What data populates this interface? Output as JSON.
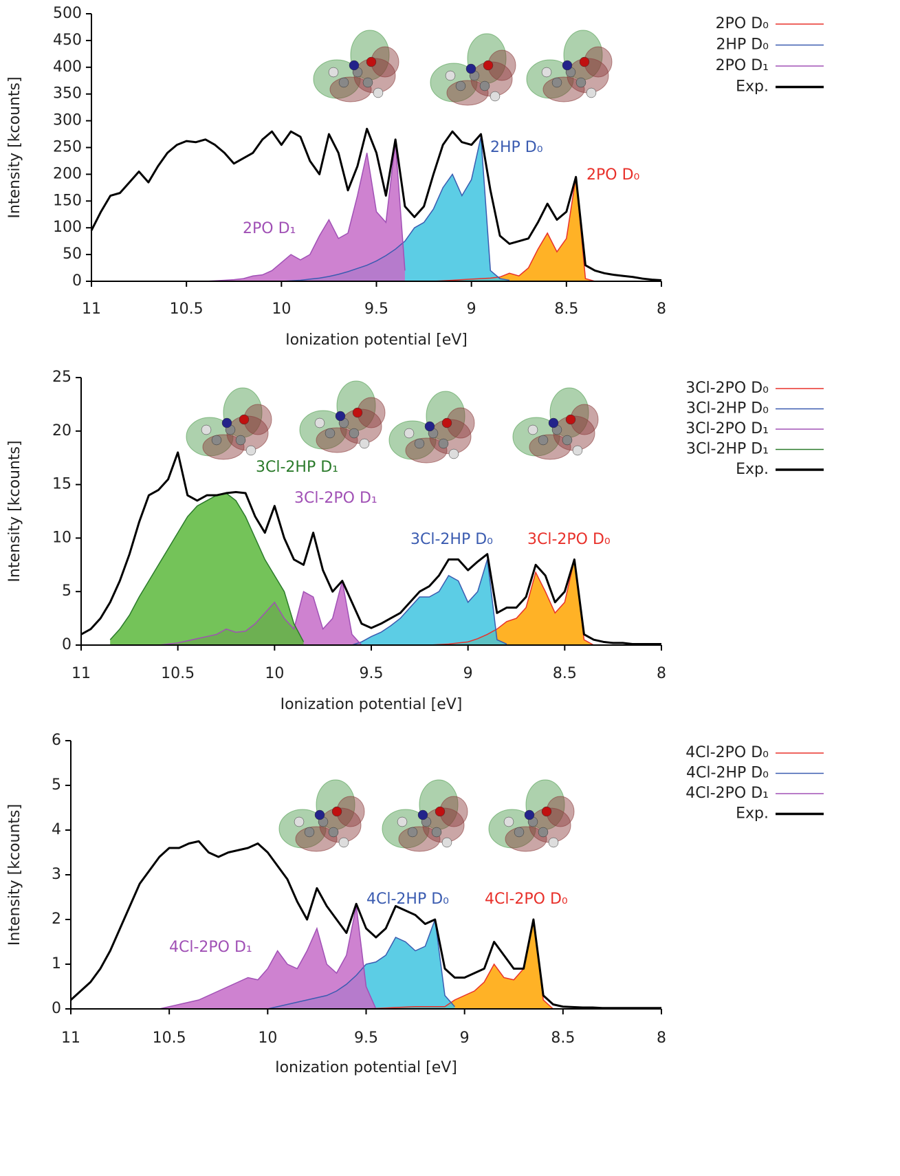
{
  "chart_data": [
    {
      "type": "line",
      "xlabel": "Ionization potential [eV]",
      "ylabel": "Intensity [kcounts]",
      "x": [
        11,
        10.95,
        10.9,
        10.85,
        10.8,
        10.75,
        10.7,
        10.65,
        10.6,
        10.55,
        10.5,
        10.45,
        10.4,
        10.35,
        10.3,
        10.25,
        10.2,
        10.15,
        10.1,
        10.05,
        10,
        9.95,
        9.9,
        9.85,
        9.8,
        9.75,
        9.7,
        9.65,
        9.6,
        9.55,
        9.5,
        9.45,
        9.4,
        9.35,
        9.3,
        9.25,
        9.2,
        9.15,
        9.1,
        9.05,
        9,
        8.95,
        8.9,
        8.85,
        8.8,
        8.75,
        8.7,
        8.65,
        8.6,
        8.55,
        8.5,
        8.45,
        8.4,
        8.35,
        8.3,
        8.25,
        8.2,
        8.15,
        8.1,
        8.05,
        8
      ],
      "xlim": [
        11,
        8
      ],
      "ylim": [
        0,
        500
      ],
      "xticks": [
        11,
        10.5,
        10,
        9.5,
        9,
        8.5,
        8
      ],
      "yticks": [
        0,
        50,
        100,
        150,
        200,
        250,
        300,
        350,
        400,
        450,
        500
      ],
      "series": [
        {
          "name": "2PO D₀",
          "color": "#e8302a",
          "fill": "#ffa500",
          "values": [
            null,
            null,
            null,
            null,
            null,
            null,
            null,
            null,
            null,
            null,
            null,
            null,
            null,
            null,
            null,
            null,
            null,
            null,
            null,
            null,
            null,
            null,
            null,
            null,
            null,
            null,
            null,
            null,
            null,
            null,
            null,
            null,
            null,
            null,
            null,
            null,
            0,
            1,
            2,
            3,
            4,
            5,
            6,
            8,
            15,
            10,
            25,
            60,
            90,
            55,
            80,
            195,
            5,
            0,
            null,
            null,
            null,
            null,
            null,
            null,
            null
          ]
        },
        {
          "name": "2HP D₀",
          "color": "#3a5bb0",
          "fill": "#40c4e0",
          "values": [
            null,
            null,
            null,
            null,
            null,
            null,
            null,
            null,
            null,
            null,
            null,
            null,
            null,
            null,
            null,
            null,
            null,
            null,
            null,
            null,
            0,
            1,
            2,
            4,
            6,
            9,
            13,
            18,
            24,
            30,
            38,
            48,
            60,
            75,
            100,
            110,
            135,
            175,
            200,
            160,
            190,
            270,
            20,
            5,
            2,
            null,
            null,
            null,
            null,
            null,
            null,
            null,
            null,
            null,
            null,
            null,
            null,
            null,
            null,
            null,
            null
          ]
        },
        {
          "name": "2PO D₁",
          "color": "#a050b5",
          "fill": "#c66cc8",
          "values": [
            null,
            null,
            null,
            null,
            null,
            null,
            null,
            null,
            null,
            null,
            null,
            null,
            0,
            1,
            2,
            3,
            5,
            10,
            12,
            20,
            35,
            50,
            40,
            50,
            85,
            115,
            80,
            90,
            160,
            240,
            130,
            110,
            260,
            20,
            null,
            null,
            null,
            null,
            null,
            null,
            null,
            null,
            null,
            null,
            null,
            null,
            null,
            null,
            null,
            null,
            null,
            null,
            null,
            null,
            null,
            null,
            null,
            null,
            null,
            null,
            null
          ]
        },
        {
          "name": "Exp.",
          "color": "#000000",
          "values": [
            95,
            130,
            160,
            165,
            185,
            205,
            185,
            215,
            240,
            255,
            262,
            260,
            265,
            255,
            240,
            220,
            230,
            240,
            265,
            280,
            255,
            280,
            270,
            225,
            200,
            275,
            240,
            170,
            215,
            285,
            240,
            160,
            265,
            140,
            120,
            140,
            200,
            255,
            280,
            260,
            255,
            275,
            170,
            85,
            70,
            75,
            80,
            110,
            145,
            115,
            130,
            195,
            30,
            20,
            15,
            12,
            10,
            8,
            5,
            3,
            2
          ]
        }
      ]
    },
    {
      "type": "line",
      "xlabel": "Ionization potential [eV]",
      "ylabel": "Intensity [kcounts]",
      "x": [
        11,
        10.95,
        10.9,
        10.85,
        10.8,
        10.75,
        10.7,
        10.65,
        10.6,
        10.55,
        10.5,
        10.45,
        10.4,
        10.35,
        10.3,
        10.25,
        10.2,
        10.15,
        10.1,
        10.05,
        10,
        9.95,
        9.9,
        9.85,
        9.8,
        9.75,
        9.7,
        9.65,
        9.6,
        9.55,
        9.5,
        9.45,
        9.4,
        9.35,
        9.3,
        9.25,
        9.2,
        9.15,
        9.1,
        9.05,
        9,
        8.95,
        8.9,
        8.85,
        8.8,
        8.75,
        8.7,
        8.65,
        8.6,
        8.55,
        8.5,
        8.45,
        8.4,
        8.35,
        8.3,
        8.25,
        8.2,
        8.15,
        8.1,
        8.05,
        8
      ],
      "xlim": [
        11,
        8
      ],
      "ylim": [
        0,
        25
      ],
      "xticks": [
        11,
        10.5,
        10,
        9.5,
        9,
        8.5,
        8
      ],
      "yticks": [
        0,
        5,
        10,
        15,
        20,
        25
      ],
      "series": [
        {
          "name": "3Cl-2PO D₀",
          "color": "#e8302a",
          "fill": "#ffa500",
          "values": [
            null,
            null,
            null,
            null,
            null,
            null,
            null,
            null,
            null,
            null,
            null,
            null,
            null,
            null,
            null,
            null,
            null,
            null,
            null,
            null,
            null,
            null,
            null,
            null,
            null,
            null,
            null,
            null,
            null,
            null,
            null,
            null,
            null,
            null,
            null,
            null,
            0,
            0.05,
            0.1,
            0.2,
            0.3,
            0.6,
            1,
            1.5,
            2.2,
            2.5,
            3.5,
            6.8,
            5,
            3,
            4,
            8,
            0.5,
            0,
            null,
            null,
            null,
            null,
            null,
            null,
            null
          ]
        },
        {
          "name": "3Cl-2HP D₀",
          "color": "#3a5bb0",
          "fill": "#40c4e0",
          "values": [
            null,
            null,
            null,
            null,
            null,
            null,
            null,
            null,
            null,
            null,
            null,
            null,
            null,
            null,
            null,
            null,
            null,
            null,
            null,
            null,
            null,
            null,
            null,
            null,
            null,
            null,
            null,
            null,
            0,
            0.3,
            0.8,
            1.2,
            1.8,
            2.5,
            3.5,
            4.5,
            4.5,
            5,
            6.5,
            6,
            4,
            5,
            8,
            0.5,
            0.1,
            null,
            null,
            null,
            null,
            null,
            null,
            null,
            null,
            null,
            null,
            null,
            null,
            null,
            null,
            null,
            null
          ]
        },
        {
          "name": "3Cl-2PO D₁",
          "color": "#a050b5",
          "fill": "#c66cc8",
          "values": [
            null,
            null,
            null,
            null,
            null,
            null,
            null,
            null,
            0,
            0.1,
            0.2,
            0.4,
            0.6,
            0.8,
            1,
            1.5,
            1.2,
            1.3,
            2,
            3,
            4,
            2.5,
            1.5,
            5,
            4.5,
            1.5,
            2.5,
            6,
            1,
            0,
            null,
            null,
            null,
            null,
            null,
            null,
            null,
            null,
            null,
            null,
            null,
            null,
            null,
            null,
            null,
            null,
            null,
            null,
            null,
            null,
            null,
            null,
            null,
            null,
            null,
            null,
            null,
            null,
            null,
            null,
            null
          ]
        },
        {
          "name": "3Cl-2HP D₁",
          "color": "#2a7a2a",
          "fill": "#5cb83c",
          "values": [
            null,
            null,
            null,
            0.5,
            1.5,
            2.8,
            4.5,
            6,
            7.5,
            9,
            10.5,
            12,
            13,
            13.5,
            14,
            14.2,
            13.5,
            12,
            10,
            8,
            6.5,
            5,
            2,
            0.3,
            null,
            null,
            null,
            null,
            null,
            null,
            null,
            null,
            null,
            null,
            null,
            null,
            null,
            null,
            null,
            null,
            null,
            null,
            null,
            null,
            null,
            null,
            null,
            null,
            null,
            null,
            null,
            null,
            null,
            null,
            null,
            null,
            null,
            null,
            null,
            null,
            null
          ]
        },
        {
          "name": "Exp.",
          "color": "#000000",
          "values": [
            1,
            1.5,
            2.5,
            4,
            6,
            8.5,
            11.5,
            14,
            14.5,
            15.5,
            18,
            14,
            13.5,
            14,
            14,
            14.2,
            14.3,
            14.2,
            12,
            10.5,
            13,
            10,
            8,
            7.5,
            10.5,
            7,
            5,
            6,
            4,
            2,
            1.6,
            2,
            2.5,
            3,
            4,
            5,
            5.5,
            6.5,
            8,
            8,
            7,
            7.8,
            8.5,
            3,
            3.5,
            3.5,
            4.5,
            7.5,
            6.5,
            4,
            5,
            8,
            1,
            0.5,
            0.3,
            0.2,
            0.2,
            0.1,
            0.1,
            0.1,
            0.1
          ]
        }
      ]
    },
    {
      "type": "line",
      "xlabel": "Ionization potential [eV]",
      "ylabel": "Intensity [kcounts]",
      "x": [
        11,
        10.95,
        10.9,
        10.85,
        10.8,
        10.75,
        10.7,
        10.65,
        10.6,
        10.55,
        10.5,
        10.45,
        10.4,
        10.35,
        10.3,
        10.25,
        10.2,
        10.15,
        10.1,
        10.05,
        10,
        9.95,
        9.9,
        9.85,
        9.8,
        9.75,
        9.7,
        9.65,
        9.6,
        9.55,
        9.5,
        9.45,
        9.4,
        9.35,
        9.3,
        9.25,
        9.2,
        9.15,
        9.1,
        9.05,
        9,
        8.95,
        8.9,
        8.85,
        8.8,
        8.75,
        8.7,
        8.65,
        8.6,
        8.55,
        8.5,
        8.45,
        8.4,
        8.35,
        8.3,
        8.25,
        8.2,
        8.15,
        8.1,
        8.05,
        8
      ],
      "xlim": [
        11,
        8
      ],
      "ylim": [
        0,
        6
      ],
      "xticks": [
        11,
        10.5,
        10,
        9.5,
        9,
        8.5,
        8
      ],
      "yticks": [
        0,
        1,
        2,
        3,
        4,
        5,
        6
      ],
      "series": [
        {
          "name": "4Cl-2PO D₀",
          "color": "#e8302a",
          "fill": "#ffa500",
          "values": [
            null,
            null,
            null,
            null,
            null,
            null,
            null,
            null,
            null,
            null,
            null,
            null,
            null,
            null,
            null,
            null,
            null,
            null,
            null,
            null,
            null,
            null,
            null,
            null,
            null,
            null,
            null,
            null,
            null,
            null,
            0,
            0.01,
            0.02,
            0.03,
            0.04,
            0.05,
            0.05,
            0.05,
            0.05,
            0.2,
            0.3,
            0.4,
            0.6,
            1,
            0.7,
            0.65,
            0.9,
            2,
            0.2,
            0,
            null,
            null,
            null,
            null,
            null,
            null,
            null,
            null,
            null,
            null,
            null
          ]
        },
        {
          "name": "4Cl-2HP D₀",
          "color": "#3a5bb0",
          "fill": "#40c4e0",
          "values": [
            null,
            null,
            null,
            null,
            null,
            null,
            null,
            null,
            null,
            null,
            null,
            null,
            null,
            null,
            null,
            null,
            null,
            null,
            null,
            null,
            0,
            0.05,
            0.1,
            0.15,
            0.2,
            0.25,
            0.3,
            0.4,
            0.55,
            0.75,
            1,
            1.05,
            1.2,
            1.6,
            1.5,
            1.3,
            1.4,
            2,
            0.3,
            0.05,
            null,
            null,
            null,
            null,
            null,
            null,
            null,
            null,
            null,
            null,
            null,
            null,
            null,
            null,
            null,
            null,
            null,
            null,
            null,
            null,
            null
          ]
        },
        {
          "name": "4Cl-2PO D₁",
          "color": "#a050b5",
          "fill": "#c66cc8",
          "values": [
            null,
            null,
            null,
            null,
            null,
            null,
            null,
            null,
            null,
            0,
            0.05,
            0.1,
            0.15,
            0.2,
            0.3,
            0.4,
            0.5,
            0.6,
            0.7,
            0.65,
            0.9,
            1.3,
            1,
            0.9,
            1.3,
            1.8,
            1,
            0.8,
            1.2,
            2.3,
            0.5,
            0,
            null,
            null,
            null,
            null,
            null,
            null,
            null,
            null,
            null,
            null,
            null,
            null,
            null,
            null,
            null,
            null,
            null,
            null,
            null,
            null,
            null,
            null,
            null,
            null,
            null,
            null,
            null,
            null,
            null
          ]
        },
        {
          "name": "Exp.",
          "color": "#000000",
          "values": [
            0.2,
            0.4,
            0.6,
            0.9,
            1.3,
            1.8,
            2.3,
            2.8,
            3.1,
            3.4,
            3.6,
            3.6,
            3.7,
            3.75,
            3.5,
            3.4,
            3.5,
            3.55,
            3.6,
            3.7,
            3.5,
            3.2,
            2.9,
            2.4,
            2,
            2.7,
            2.3,
            2,
            1.7,
            2.35,
            1.8,
            1.6,
            1.8,
            2.3,
            2.2,
            2.1,
            1.9,
            2,
            0.9,
            0.7,
            0.7,
            0.8,
            0.9,
            1.5,
            1.2,
            0.9,
            0.9,
            2,
            0.3,
            0.1,
            0.05,
            0.04,
            0.03,
            0.03,
            0.02,
            0.02,
            0.02,
            0.02,
            0.02,
            0.02,
            0.02
          ]
        }
      ]
    }
  ]
}
